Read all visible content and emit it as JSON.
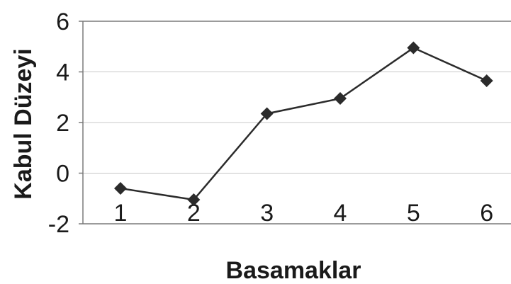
{
  "chart_data": {
    "type": "line",
    "title": "",
    "xlabel": "Basamaklar",
    "ylabel": "Kabul Düzeyi",
    "categories": [
      "1",
      "2",
      "3",
      "4",
      "5",
      "6"
    ],
    "series": [
      {
        "values": [
          -0.6,
          -1.05,
          2.35,
          2.95,
          4.95,
          3.65
        ],
        "color": "#2b2b2b",
        "marker": "diamond"
      }
    ],
    "yticks": [
      "-2",
      "0",
      "2",
      "4",
      "6"
    ],
    "ylim": [
      -2,
      6
    ],
    "grid": "horizontal",
    "legend": "none",
    "colors": {
      "line": "#2b2b2b",
      "grid": "#c8c8c8",
      "frame": "#7a7a7a",
      "text": "#1a1a1a"
    }
  }
}
